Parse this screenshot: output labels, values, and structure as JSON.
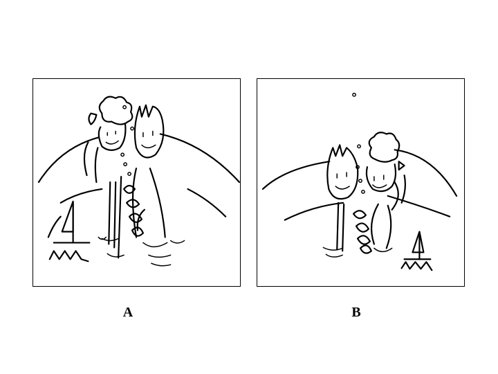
{
  "panels": [
    {
      "label": "A",
      "illustration": "two-children-wading-sailboat-left"
    },
    {
      "label": "B",
      "illustration": "two-children-wading-sailboat-right"
    }
  ],
  "colors": {
    "ink": "#000000",
    "background": "#ffffff"
  }
}
